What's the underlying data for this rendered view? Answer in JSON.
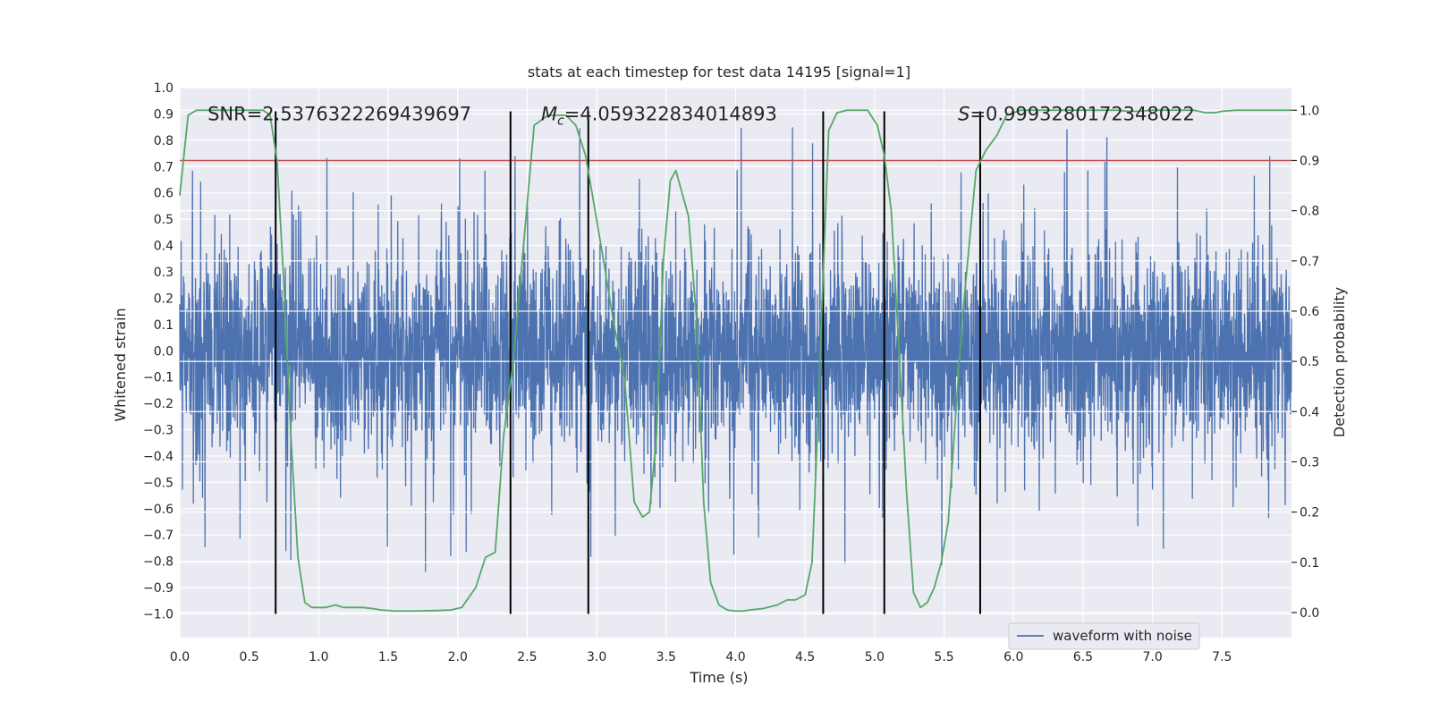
{
  "chart_data": {
    "type": "line",
    "title": "stats at each timestep for test data 14195 [signal=1]",
    "xlabel": "Time (s)",
    "ylabel_left": "Whitened strain",
    "ylabel_right": "Detection probability",
    "xlim": [
      0.0,
      8.0
    ],
    "ylim_left": [
      -1.09,
      1.0
    ],
    "ylim_right": [
      -0.05,
      1.045
    ],
    "x_ticks": [
      0.0,
      0.5,
      1.0,
      1.5,
      2.0,
      2.5,
      3.0,
      3.5,
      4.0,
      4.5,
      5.0,
      5.5,
      6.0,
      6.5,
      7.0,
      7.5
    ],
    "x_tick_labels": [
      "0.0",
      "0.5",
      "1.0",
      "1.5",
      "2.0",
      "2.5",
      "3.0",
      "3.5",
      "4.0",
      "4.5",
      "5.0",
      "5.5",
      "6.0",
      "6.5",
      "7.0",
      "7.5"
    ],
    "y_left_ticks": [
      1.0,
      0.9,
      0.8,
      0.7,
      0.6,
      0.5,
      0.4,
      0.3,
      0.2,
      0.1,
      0.0,
      -0.1,
      -0.2,
      -0.3,
      -0.4,
      -0.5,
      -0.6,
      -0.7,
      -0.8,
      -0.9,
      -1.0
    ],
    "y_left_tick_labels": [
      "1.0",
      "0.9",
      "0.8",
      "0.7",
      "0.6",
      "0.5",
      "0.4",
      "0.3",
      "0.2",
      "0.1",
      "0.0",
      "−0.1",
      "−0.2",
      "−0.3",
      "−0.4",
      "−0.5",
      "−0.6",
      "−0.7",
      "−0.8",
      "−0.9",
      "−1.0"
    ],
    "y_right_ticks": [
      1.0,
      0.9,
      0.8,
      0.7,
      0.6,
      0.5,
      0.4,
      0.3,
      0.2,
      0.1,
      0.0
    ],
    "y_right_tick_labels": [
      "1.0",
      "0.9",
      "0.8",
      "0.7",
      "0.6",
      "0.5",
      "0.4",
      "0.3",
      "0.2",
      "0.1",
      "0.0"
    ],
    "grid": true,
    "series": [
      {
        "name": "waveform with noise",
        "axis": "left",
        "kind": "dense noise",
        "x_range": [
          0.0,
          8.0
        ],
        "typical_range": [
          -0.45,
          0.45
        ],
        "max": 0.91,
        "min": -1.0,
        "color": "#4c72b0"
      },
      {
        "axis": "right",
        "color": "#55a868",
        "x": [
          0.0,
          0.06,
          0.12,
          0.2,
          0.3,
          0.4,
          0.5,
          0.6,
          0.65,
          0.7,
          0.75,
          0.8,
          0.85,
          0.9,
          0.95,
          1.0,
          1.05,
          1.12,
          1.18,
          1.25,
          1.32,
          1.38,
          1.45,
          1.55,
          1.7,
          1.85,
          1.95,
          2.03,
          2.08,
          2.13,
          2.2,
          2.27,
          2.33,
          2.4,
          2.47,
          2.55,
          2.65,
          2.72,
          2.78,
          2.85,
          2.92,
          2.97,
          3.05,
          3.12,
          3.2,
          3.27,
          3.33,
          3.38,
          3.43,
          3.48,
          3.53,
          3.57,
          3.62,
          3.66,
          3.72,
          3.77,
          3.82,
          3.88,
          3.94,
          4.0,
          4.05,
          4.1,
          4.2,
          4.3,
          4.37,
          4.43,
          4.5,
          4.55,
          4.58,
          4.62,
          4.67,
          4.73,
          4.8,
          4.88,
          4.95,
          5.02,
          5.07,
          5.12,
          5.18,
          5.23,
          5.28,
          5.33,
          5.38,
          5.43,
          5.48,
          5.53,
          5.58,
          5.63,
          5.68,
          5.73,
          5.8,
          5.88,
          5.95,
          6.05,
          6.2,
          6.4,
          6.6,
          6.75,
          6.82,
          6.9,
          7.0,
          7.1,
          7.2,
          7.3,
          7.38,
          7.45,
          7.5,
          7.6,
          7.7,
          7.8,
          7.93,
          8.0
        ],
        "y": [
          0.83,
          0.99,
          1.0,
          1.0,
          1.0,
          1.0,
          1.0,
          1.0,
          0.99,
          0.9,
          0.65,
          0.35,
          0.11,
          0.02,
          0.01,
          0.01,
          0.01,
          0.015,
          0.01,
          0.01,
          0.01,
          0.008,
          0.005,
          0.003,
          0.003,
          0.004,
          0.005,
          0.01,
          0.03,
          0.05,
          0.11,
          0.12,
          0.35,
          0.5,
          0.72,
          0.97,
          0.99,
          0.99,
          0.99,
          0.97,
          0.91,
          0.83,
          0.7,
          0.58,
          0.47,
          0.22,
          0.19,
          0.2,
          0.35,
          0.7,
          0.86,
          0.88,
          0.83,
          0.79,
          0.58,
          0.22,
          0.06,
          0.015,
          0.005,
          0.003,
          0.003,
          0.005,
          0.008,
          0.015,
          0.025,
          0.025,
          0.035,
          0.1,
          0.3,
          0.6,
          0.96,
          0.995,
          1.0,
          1.0,
          1.0,
          0.97,
          0.91,
          0.8,
          0.5,
          0.24,
          0.04,
          0.01,
          0.02,
          0.05,
          0.1,
          0.18,
          0.38,
          0.58,
          0.73,
          0.88,
          0.92,
          0.95,
          0.99,
          1.0,
          1.0,
          1.0,
          1.0,
          1.0,
          0.998,
          0.998,
          1.0,
          1.0,
          1.0,
          1.0,
          0.995,
          0.995,
          0.998,
          1.0,
          1.0,
          1.0,
          1.0,
          1.0
        ]
      }
    ],
    "threshold_line": {
      "axis": "right",
      "y": 0.9,
      "color": "#c44e52"
    },
    "vertical_markers": {
      "x": [
        0.69,
        2.38,
        2.94,
        4.63,
        5.07,
        5.76
      ],
      "y_from": -1.0,
      "y_to": 0.91,
      "color": "#000000"
    },
    "annotations": [
      {
        "text": "SNR=2.5376322269439697",
        "x": 0.2,
        "y": 0.9
      },
      {
        "text_italic": "M",
        "subscript": "c",
        "text": "=4.059322834014893",
        "x": 2.6,
        "y": 0.9
      },
      {
        "text_italic": "S",
        "text": "=0.9993280172348022",
        "x": 5.6,
        "y": 0.9
      }
    ],
    "legend": {
      "location": "lower-right",
      "entries": [
        "waveform with noise"
      ]
    }
  }
}
